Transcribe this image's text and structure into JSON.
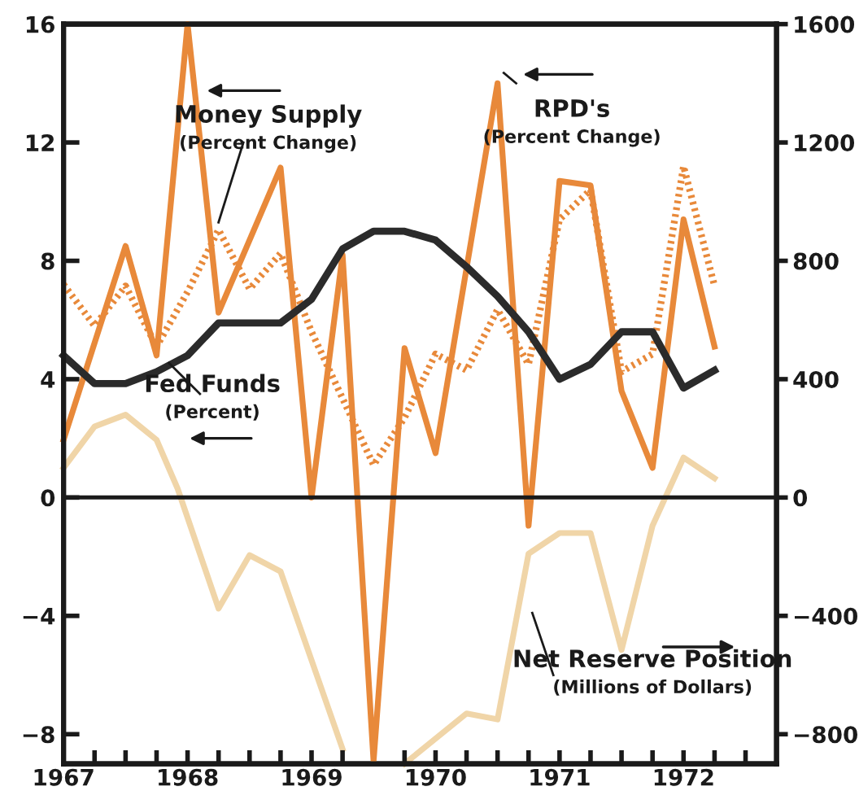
{
  "chart_data": {
    "type": "line",
    "xlim": [
      1967,
      1972.75
    ],
    "xticks": [
      {
        "value": 1967,
        "label": "1967"
      },
      {
        "value": 1967.25,
        "label": null
      },
      {
        "value": 1967.5,
        "label": null
      },
      {
        "value": 1967.75,
        "label": null
      },
      {
        "value": 1968,
        "label": "1968"
      },
      {
        "value": 1968.25,
        "label": null
      },
      {
        "value": 1968.5,
        "label": null
      },
      {
        "value": 1968.75,
        "label": null
      },
      {
        "value": 1969,
        "label": "1969"
      },
      {
        "value": 1969.25,
        "label": null
      },
      {
        "value": 1969.5,
        "label": null
      },
      {
        "value": 1969.75,
        "label": null
      },
      {
        "value": 1970,
        "label": "1970"
      },
      {
        "value": 1970.25,
        "label": null
      },
      {
        "value": 1970.5,
        "label": null
      },
      {
        "value": 1970.75,
        "label": null
      },
      {
        "value": 1971,
        "label": "1971"
      },
      {
        "value": 1971.25,
        "label": null
      },
      {
        "value": 1971.5,
        "label": null
      },
      {
        "value": 1971.75,
        "label": null
      },
      {
        "value": 1972,
        "label": "1972"
      },
      {
        "value": 1972.25,
        "label": null
      },
      {
        "value": 1972.5,
        "label": null
      }
    ],
    "ylim": [
      -9,
      16
    ],
    "yticks": [
      -8,
      -4,
      0,
      4,
      8,
      12,
      16
    ],
    "y2lim": [
      -900,
      1600
    ],
    "y2ticks": [
      -800,
      -400,
      0,
      400,
      800,
      1200,
      1600
    ],
    "grid": false,
    "legend": false,
    "marker": "none",
    "ref_lines": [
      {
        "axis": "y",
        "value": 0,
        "color": "#1a1a1a"
      }
    ],
    "series": [
      {
        "name": "Net Reserve Position\n(Millions of Dollars)",
        "axis": "y2",
        "color": "#f0d5a8",
        "line_style": "solid",
        "x": [
          1967,
          1967.25,
          1967.5,
          1967.75,
          1967.92,
          1968.25,
          1968.5,
          1968.75,
          1969.25,
          1969.5,
          1969.75,
          1970.25,
          1970.5,
          1970.75,
          1971,
          1971.25,
          1971.5,
          1971.75,
          1972,
          1972.25
        ],
        "values": [
          100,
          240,
          280,
          195,
          30,
          -375,
          -195,
          -250,
          -850,
          null,
          -900,
          -730,
          -750,
          -190,
          -120,
          -120,
          -515,
          -95,
          135,
          65
        ]
      },
      {
        "name": "Money Supply\n(Percent Change)",
        "color": "#e8893a",
        "line_style": "dotted",
        "x": [
          1967,
          1967.25,
          1967.5,
          1967.75,
          1968,
          1968.25,
          1968.5,
          1968.75,
          1969,
          1969.5,
          1969.75,
          1970,
          1970.25,
          1970.5,
          1970.75,
          1971,
          1971.25,
          1971.5,
          1971.75,
          1972,
          1972.25
        ],
        "values": [
          7.2,
          5.8,
          7.15,
          5.1,
          6.95,
          9.05,
          7.05,
          8.25,
          5.6,
          1.1,
          2.7,
          4.85,
          4.3,
          6.35,
          4.5,
          9.4,
          10.4,
          4.25,
          4.85,
          11.2,
          7.15
        ]
      },
      {
        "name": "RPD's\n(Percent Change)",
        "color": "#e8893a",
        "line_style": "solid",
        "x": [
          1967,
          1967.5,
          1967.75,
          1968,
          1968.25,
          1968.75,
          1969,
          1969.25,
          1969.5,
          1969.75,
          1970,
          1970.5,
          1970.75,
          1971,
          1971.25,
          1971.5,
          1971.75,
          1972,
          1972.25
        ],
        "values": [
          1.95,
          8.5,
          4.8,
          16,
          6.25,
          11.15,
          0,
          8.2,
          -8.9,
          5.05,
          1.5,
          14,
          -0.95,
          10.7,
          10.55,
          3.6,
          1.0,
          9.4,
          5.1
        ]
      },
      {
        "name": "Fed Funds\n(Percent)",
        "color": "#2b2b2b",
        "line_style": "solid",
        "x": [
          1967,
          1967.25,
          1967.5,
          1967.75,
          1968,
          1968.25,
          1968.5,
          1968.75,
          1969,
          1969.25,
          1969.5,
          1969.75,
          1970,
          1970.25,
          1970.5,
          1970.75,
          1971,
          1971.25,
          1971.5,
          1971.75,
          1972,
          1972.25
        ],
        "values": [
          4.8,
          3.85,
          3.85,
          4.25,
          4.8,
          5.9,
          5.9,
          5.9,
          6.7,
          8.4,
          9.0,
          9.0,
          8.7,
          7.8,
          6.8,
          5.6,
          4.0,
          4.5,
          5.6,
          5.6,
          3.7,
          4.3
        ]
      }
    ]
  }
}
